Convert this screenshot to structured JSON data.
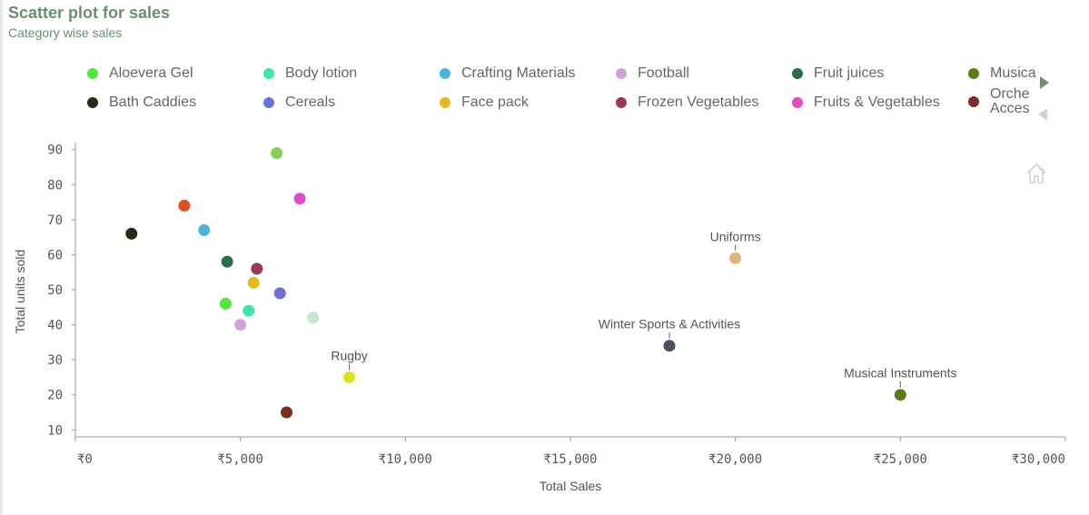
{
  "header": {
    "title": "Scatter plot for sales",
    "subtitle": "Category wise sales"
  },
  "legend": {
    "items": [
      {
        "label": "Aloevera Gel",
        "color": "#55e63c"
      },
      {
        "label": "Body lotion",
        "color": "#3fe4b0"
      },
      {
        "label": "Crafting Materials",
        "color": "#4ab3da"
      },
      {
        "label": "Football",
        "color": "#d0a2d8"
      },
      {
        "label": "Fruit juices",
        "color": "#2a7046"
      },
      {
        "label": "Musica",
        "color": "#5b7c19"
      },
      {
        "label": "Bath Caddies",
        "color": "#2b2719"
      },
      {
        "label": "Cereals",
        "color": "#6b72d4"
      },
      {
        "label": "Face pack",
        "color": "#e6b824"
      },
      {
        "label": "Frozen Vegetables",
        "color": "#9c3756"
      },
      {
        "label": "Fruits & Vegetables",
        "color": "#e04bc6"
      },
      {
        "label": "Orche Acces",
        "color": "#7a2e22"
      }
    ],
    "next_icon": "triangle-right-icon",
    "prev_icon": "triangle-left-icon"
  },
  "home_icon": "home-icon",
  "chart_data": {
    "type": "scatter",
    "title": "Scatter plot for sales",
    "subtitle": "Category wise sales",
    "xlabel": "Total Sales",
    "ylabel": "Total units sold",
    "xlim": [
      0,
      30000
    ],
    "ylim": [
      8,
      92
    ],
    "x_ticks": [
      0,
      5000,
      10000,
      15000,
      20000,
      25000,
      30000
    ],
    "x_tick_labels": [
      "₹0",
      "₹5,000",
      "₹10,000",
      "₹15,000",
      "₹20,000",
      "₹25,000",
      "₹30,000"
    ],
    "y_ticks": [
      10,
      20,
      30,
      40,
      50,
      60,
      70,
      80,
      90
    ],
    "y_tick_labels": [
      "10",
      "20",
      "30",
      "40",
      "50",
      "60",
      "70",
      "80",
      "90"
    ],
    "grid": false,
    "legend_position": "top",
    "points": [
      {
        "x": 1700,
        "y": 66,
        "color": "#2b2719",
        "label": ""
      },
      {
        "x": 3300,
        "y": 74,
        "color": "#e0511f",
        "label": ""
      },
      {
        "x": 3900,
        "y": 67,
        "color": "#4ab3da",
        "label": ""
      },
      {
        "x": 4600,
        "y": 58,
        "color": "#2a7046",
        "label": ""
      },
      {
        "x": 4550,
        "y": 46,
        "color": "#55e63c",
        "label": ""
      },
      {
        "x": 5000,
        "y": 40,
        "color": "#d0a2d8",
        "label": ""
      },
      {
        "x": 5250,
        "y": 44,
        "color": "#3fe4b0",
        "label": ""
      },
      {
        "x": 5400,
        "y": 52,
        "color": "#e6b824",
        "label": ""
      },
      {
        "x": 5500,
        "y": 56,
        "color": "#9c3756",
        "label": ""
      },
      {
        "x": 6100,
        "y": 89,
        "color": "#86cc55",
        "label": ""
      },
      {
        "x": 6200,
        "y": 49,
        "color": "#6b72d4",
        "label": ""
      },
      {
        "x": 6400,
        "y": 15,
        "color": "#7a2e22",
        "label": ""
      },
      {
        "x": 6800,
        "y": 76,
        "color": "#e04bc6",
        "label": ""
      },
      {
        "x": 7200,
        "y": 42,
        "color": "#c6e6d0",
        "label": ""
      },
      {
        "x": 8300,
        "y": 25,
        "color": "#dde21c",
        "label": "Rugby"
      },
      {
        "x": 18000,
        "y": 34,
        "color": "#47515e",
        "label": "Winter Sports & Activities"
      },
      {
        "x": 20000,
        "y": 59,
        "color": "#e0b47c",
        "label": "Uniforms"
      },
      {
        "x": 25000,
        "y": 20,
        "color": "#5b7c19",
        "label": "Musical Instruments"
      }
    ]
  }
}
